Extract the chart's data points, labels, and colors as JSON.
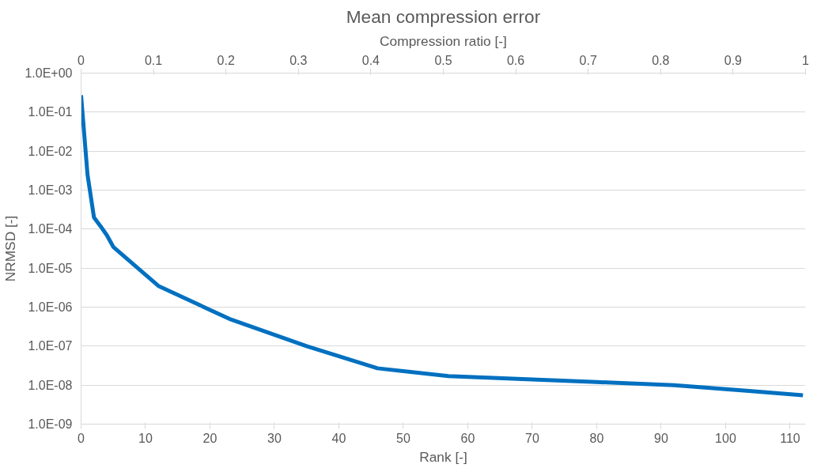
{
  "chart_data": {
    "type": "line",
    "title": "Mean compression error",
    "xlabel": "Rank [-]",
    "ylabel": "NRMSD [-]",
    "x2label": "Compression ratio [-]",
    "x": [
      0,
      1,
      2,
      3,
      4,
      5,
      12,
      23,
      35,
      46,
      57,
      70,
      80,
      92,
      104,
      112
    ],
    "series": [
      {
        "color": "#0070c0",
        "values": [
          0.27,
          0.0025,
          0.0002,
          0.00012,
          7e-05,
          3.5e-05,
          3.5e-06,
          5e-07,
          1e-07,
          2.7e-08,
          1.7e-08,
          1.4e-08,
          1.2e-08,
          1e-08,
          7e-09,
          5.5e-09
        ]
      }
    ],
    "xlim": [
      0,
      112.4
    ],
    "xticks": [
      0,
      10,
      20,
      30,
      40,
      50,
      60,
      70,
      80,
      90,
      100,
      110
    ],
    "x2lim": [
      0,
      1
    ],
    "x2ticks": [
      0,
      0.1,
      0.2,
      0.3,
      0.4,
      0.5,
      0.6,
      0.7,
      0.8,
      0.9,
      1
    ],
    "ylim": [
      1e-09,
      1
    ],
    "log": "y",
    "yticks": [
      {
        "value": 1,
        "label": "1.0E+00"
      },
      {
        "value": 0.1,
        "label": "1.0E-01"
      },
      {
        "value": 0.01,
        "label": "1.0E-02"
      },
      {
        "value": 0.001,
        "label": "1.0E-03"
      },
      {
        "value": 0.0001,
        "label": "1.0E-04"
      },
      {
        "value": 1e-05,
        "label": "1.0E-05"
      },
      {
        "value": 1e-06,
        "label": "1.0E-06"
      },
      {
        "value": 1e-07,
        "label": "1.0E-07"
      },
      {
        "value": 1e-08,
        "label": "1.0E-08"
      },
      {
        "value": 1e-09,
        "label": "1.0E-09"
      }
    ],
    "grid": "y",
    "line_style": "solid",
    "marker": "none"
  }
}
